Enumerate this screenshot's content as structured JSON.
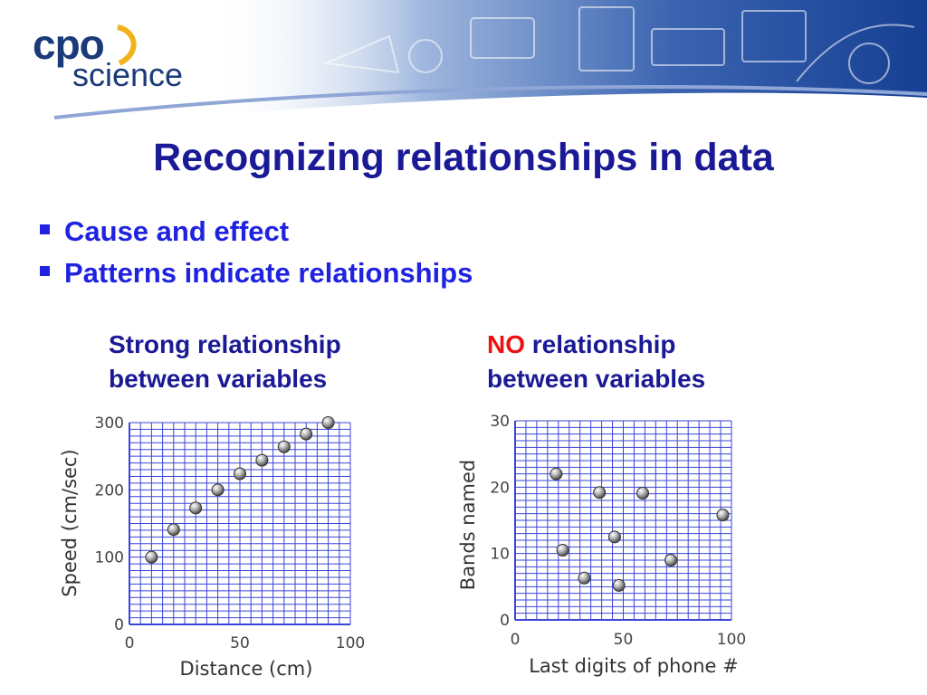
{
  "logo": {
    "line1": "cpo",
    "line2": "science"
  },
  "title": "Recognizing relationships in data",
  "bullets": [
    "Cause and effect",
    "Patterns indicate relationships"
  ],
  "left_caption": {
    "line1": "Strong relationship",
    "line2": "between variables"
  },
  "right_caption": {
    "line1_highlight": "NO",
    "line1_rest": " relationship",
    "line2": "between variables"
  },
  "colors": {
    "title": "#1a1a96",
    "bullet": "#1f22e0",
    "highlight": "#ee1111",
    "grid": "#3a45d6",
    "point": "#9a9a9a"
  },
  "chart_data": [
    {
      "type": "scatter",
      "xlabel": "Distance (cm)",
      "ylabel": "Speed (cm/sec)",
      "xlim": [
        0,
        100
      ],
      "ylim": [
        0,
        300
      ],
      "xticks": [
        0,
        50,
        100
      ],
      "yticks": [
        0,
        100,
        200,
        300
      ],
      "grid": true,
      "points": [
        {
          "x": 10,
          "y": 100
        },
        {
          "x": 20,
          "y": 141
        },
        {
          "x": 30,
          "y": 173
        },
        {
          "x": 40,
          "y": 200
        },
        {
          "x": 50,
          "y": 224
        },
        {
          "x": 60,
          "y": 244
        },
        {
          "x": 70,
          "y": 264
        },
        {
          "x": 80,
          "y": 283
        },
        {
          "x": 90,
          "y": 300
        }
      ]
    },
    {
      "type": "scatter",
      "xlabel": "Last digits of phone #",
      "ylabel": "Bands named",
      "xlim": [
        0,
        100
      ],
      "ylim": [
        0,
        30
      ],
      "xticks": [
        0,
        50,
        100
      ],
      "yticks": [
        0,
        10,
        20,
        30
      ],
      "grid": true,
      "points": [
        {
          "x": 19,
          "y": 22
        },
        {
          "x": 22,
          "y": 10.5
        },
        {
          "x": 32,
          "y": 6.3
        },
        {
          "x": 39,
          "y": 19.2
        },
        {
          "x": 46,
          "y": 12.5
        },
        {
          "x": 48,
          "y": 5.2
        },
        {
          "x": 59,
          "y": 19.1
        },
        {
          "x": 72,
          "y": 9
        },
        {
          "x": 96,
          "y": 15.8
        }
      ]
    }
  ]
}
